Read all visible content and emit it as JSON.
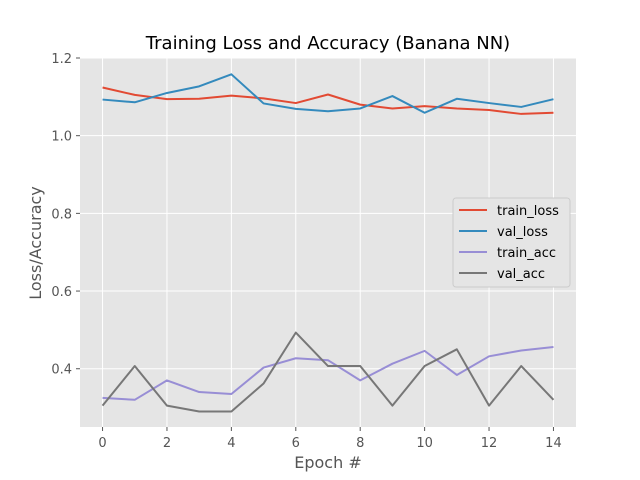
{
  "chart_data": {
    "type": "line",
    "title": "Training Loss and Accuracy (Banana NN)",
    "xlabel": "Epoch #",
    "ylabel": "Loss/Accuracy",
    "xlim": [
      -0.7,
      14.7
    ],
    "ylim": [
      0.25,
      1.2
    ],
    "xticks": [
      0,
      2,
      4,
      6,
      8,
      10,
      12,
      14
    ],
    "yticks": [
      0.4,
      0.6,
      0.8,
      1.0,
      1.2
    ],
    "ytick_labels": [
      "0.4",
      "0.6",
      "0.8",
      "1.0",
      "1.2"
    ],
    "grid": true,
    "background": "#e5e5e5",
    "legend": "center-right",
    "x": [
      0,
      1,
      2,
      3,
      4,
      5,
      6,
      7,
      8,
      9,
      10,
      11,
      12,
      13,
      14
    ],
    "series": [
      {
        "name": "train_loss",
        "color": "#e24a33",
        "values": [
          1.124,
          1.105,
          1.094,
          1.095,
          1.103,
          1.096,
          1.084,
          1.106,
          1.08,
          1.07,
          1.076,
          1.07,
          1.066,
          1.056,
          1.059
        ]
      },
      {
        "name": "val_loss",
        "color": "#348abd",
        "values": [
          1.093,
          1.086,
          1.11,
          1.127,
          1.158,
          1.083,
          1.069,
          1.063,
          1.07,
          1.102,
          1.059,
          1.095,
          1.084,
          1.074,
          1.094
        ]
      },
      {
        "name": "train_acc",
        "color": "#988ed5",
        "values": [
          0.325,
          0.32,
          0.37,
          0.34,
          0.335,
          0.403,
          0.427,
          0.422,
          0.37,
          0.413,
          0.446,
          0.384,
          0.432,
          0.447,
          0.456
        ]
      },
      {
        "name": "val_acc",
        "color": "#777777",
        "values": [
          0.305,
          0.407,
          0.305,
          0.29,
          0.29,
          0.362,
          0.493,
          0.407,
          0.407,
          0.305,
          0.407,
          0.45,
          0.305,
          0.407,
          0.32
        ]
      }
    ]
  }
}
